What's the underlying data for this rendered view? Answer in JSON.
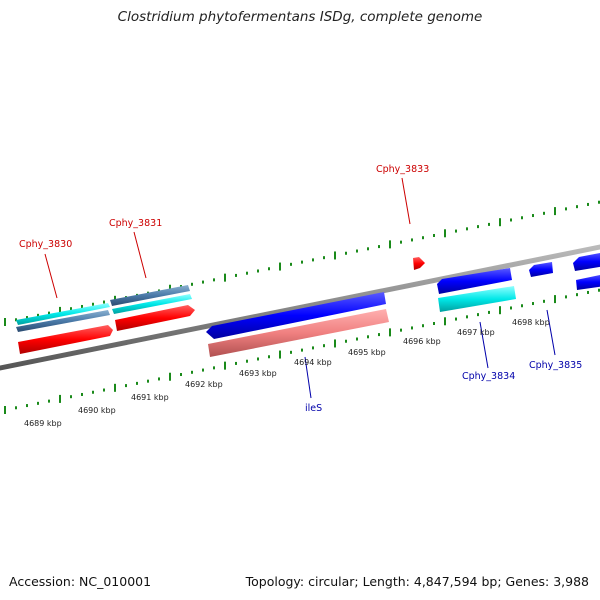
{
  "title": "Clostridium phytofermentans ISDg, complete genome",
  "footer": {
    "accession": "Accession: NC_010001",
    "summary": "Topology: circular; Length: 4,847,594 bp; Genes: 3,988"
  },
  "colors": {
    "forward_cds": "#ff0000",
    "forward_gene": "#00e0e0",
    "reverse_cds": "#0000ff",
    "reverse_gene": "#f08080",
    "backbone": "#888888",
    "tick": "#1a8a1a",
    "label_forward": "#cc0000",
    "label_reverse": "#0000aa"
  },
  "ticks": [
    "4689 kbp",
    "4690 kbp",
    "4691 kbp",
    "4692 kbp",
    "4693 kbp",
    "4694 kbp",
    "4695 kbp",
    "4696 kbp",
    "4697 kbp",
    "4698 kbp"
  ],
  "gene_labels": [
    {
      "name": "Cphy_3830",
      "strand": "forward"
    },
    {
      "name": "Cphy_3831",
      "strand": "forward"
    },
    {
      "name": "Cphy_3833",
      "strand": "forward"
    },
    {
      "name": "ileS",
      "strand": "reverse"
    },
    {
      "name": "Cphy_3834",
      "strand": "reverse"
    },
    {
      "name": "Cphy_3835",
      "strand": "reverse"
    }
  ]
}
